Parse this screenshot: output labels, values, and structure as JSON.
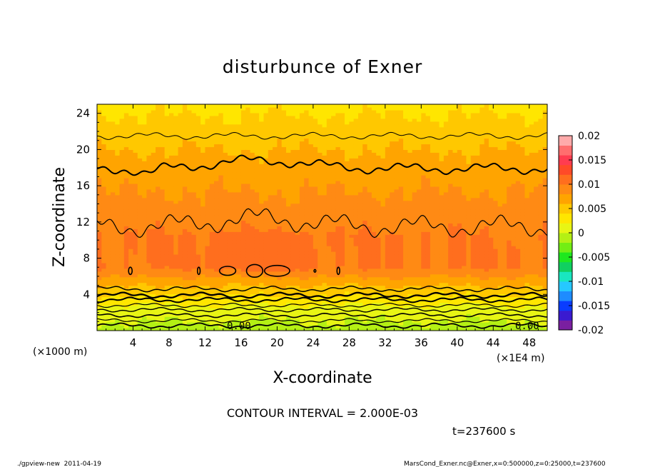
{
  "chart_data": {
    "type": "contour",
    "title": "disturbunce of Exner",
    "xlabel": "X-coordinate",
    "ylabel": "Z-coordinate",
    "x_unit": "(×1E4 m)",
    "y_unit": "(×1000 m)",
    "xlim": [
      0,
      50
    ],
    "ylim": [
      0,
      25
    ],
    "x_ticks": [
      4,
      8,
      12,
      16,
      20,
      24,
      28,
      32,
      36,
      40,
      44,
      48
    ],
    "y_ticks": [
      4,
      8,
      12,
      16,
      20,
      24
    ],
    "colorbar": {
      "levels": [
        -0.02,
        -0.015,
        -0.01,
        -0.005,
        0,
        0.005,
        0.01,
        0.015,
        0.02
      ],
      "tick_labels": [
        "-0.02",
        "-0.015",
        "-0.01",
        "-0.005",
        "0",
        "0.005",
        "0.01",
        "0.015",
        "0.02"
      ],
      "colors": [
        "#7a1fa0",
        "#3a1ad0",
        "#0a3cff",
        "#1e8cff",
        "#26c8ff",
        "#19e6c0",
        "#10d060",
        "#1ee81e",
        "#72ee14",
        "#b4f014",
        "#e8f514",
        "#ffe600",
        "#ffc800",
        "#ffa400",
        "#ff8a14",
        "#ff6e1e",
        "#ff4a28",
        "#ff3c50",
        "#ff6e6e",
        "#ffaaaa"
      ]
    },
    "contour_interval": "CONTOUR INTERVAL = 2.000E-03",
    "contour_labels": [
      "0.00",
      "0.00"
    ],
    "time_label": "t=237600 s"
  },
  "footer": {
    "left": "./gpview-new  2011-04-19",
    "right": "MarsCond_Exner.nc@Exner,x=0:500000,z=0:25000,t=237600"
  }
}
